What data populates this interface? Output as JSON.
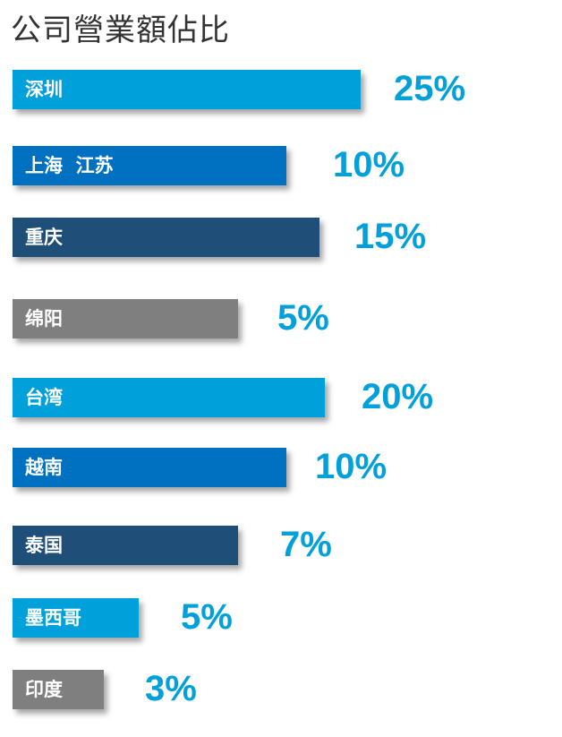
{
  "chart_data": {
    "type": "bar",
    "orientation": "horizontal",
    "title": "公司營業額佔比",
    "categories": [
      "深圳",
      "上海  江苏",
      "重庆",
      "绵阳",
      "台湾",
      "越南",
      "泰国",
      "墨西哥",
      "印度"
    ],
    "values": [
      25,
      10,
      15,
      5,
      20,
      10,
      7,
      5,
      3
    ],
    "value_labels": [
      "25%",
      "10%",
      "15%",
      "5%",
      "20%",
      "10%",
      "7%",
      "5%",
      "3%"
    ],
    "bar_colors": [
      "#00A0DA",
      "#0070C0",
      "#1F4E79",
      "#7F7F7F",
      "#00A0DA",
      "#0070C0",
      "#1F4E79",
      "#00A0DA",
      "#7F7F7F"
    ],
    "label_color": "#00A0DA",
    "grid": false,
    "legend": "none"
  }
}
